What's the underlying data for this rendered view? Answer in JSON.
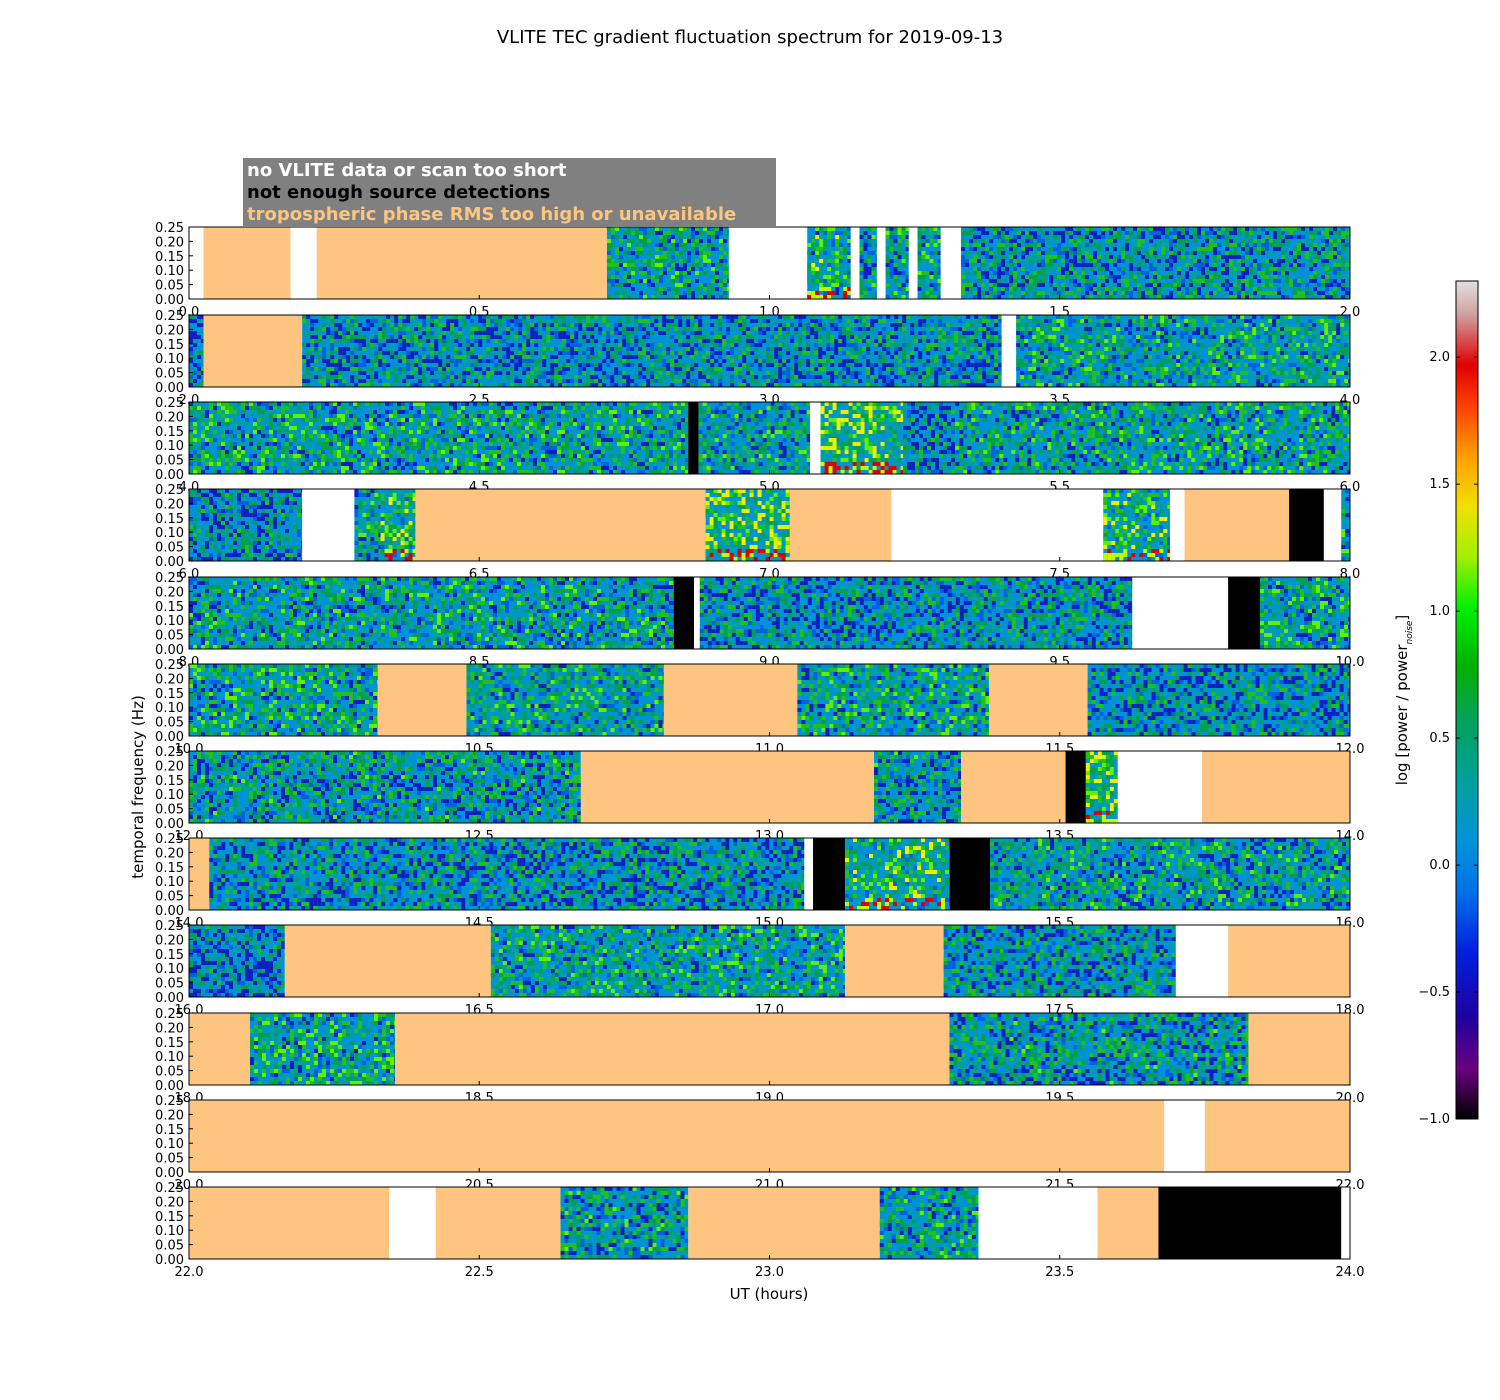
{
  "chart_data": {
    "type": "heatmap",
    "title": "VLITE TEC gradient fluctuation spectrum for 2019-09-13",
    "xlabel": "UT (hours)",
    "ylabel": "temporal frequency (Hz)",
    "ylim": [
      0,
      0.25
    ],
    "y_ticks": [
      "0.00",
      "0.05",
      "0.10",
      "0.15",
      "0.20",
      "0.25"
    ],
    "legend": {
      "placement": "top-left",
      "entries": [
        {
          "label": "no VLITE data or scan too short",
          "color": "#ffffff"
        },
        {
          "label": "not enough source detections",
          "color": "#000000"
        },
        {
          "label": "tropospheric phase RMS too high or unavailable",
          "color": "#fdc57f"
        }
      ],
      "box_color": "#808080"
    },
    "colorbar": {
      "label": "log [power / power",
      "label_sub": "noise",
      "label_end": "]",
      "min": -1.0,
      "max": 2.3,
      "ticks": [
        "−1.0",
        "−0.5",
        "0.0",
        "0.5",
        "1.0",
        "1.5",
        "2.0"
      ],
      "tick_values": [
        -1.0,
        -0.5,
        0.0,
        0.5,
        1.0,
        1.5,
        2.0
      ]
    },
    "category_colors": {
      "nodata": "#ffffff",
      "nodetect": "#000000",
      "trop": "#fdc57f",
      "spectrum_base": "#0092d9"
    },
    "panels": [
      {
        "xlim": [
          0,
          2
        ],
        "x_ticks": [
          "0.0",
          "0.5",
          "1.0",
          "1.5",
          "2.0"
        ],
        "segments": [
          {
            "t0": 0.0,
            "t1": 0.025,
            "type": "nodata"
          },
          {
            "t0": 0.025,
            "t1": 0.175,
            "type": "trop"
          },
          {
            "t0": 0.175,
            "t1": 0.22,
            "type": "nodata"
          },
          {
            "t0": 0.22,
            "t1": 0.72,
            "type": "trop"
          },
          {
            "t0": 0.72,
            "t1": 0.93,
            "type": "spec",
            "level": 0.5
          },
          {
            "t0": 0.93,
            "t1": 1.065,
            "type": "nodata"
          },
          {
            "t0": 1.065,
            "t1": 1.14,
            "type": "spec",
            "level": 0.7
          },
          {
            "t0": 1.14,
            "t1": 1.155,
            "type": "nodata"
          },
          {
            "t0": 1.155,
            "t1": 1.185,
            "type": "spec",
            "level": 0.5
          },
          {
            "t0": 1.185,
            "t1": 1.2,
            "type": "nodata"
          },
          {
            "t0": 1.2,
            "t1": 1.24,
            "type": "spec",
            "level": 0.5
          },
          {
            "t0": 1.24,
            "t1": 1.255,
            "type": "nodata"
          },
          {
            "t0": 1.255,
            "t1": 1.295,
            "type": "spec",
            "level": 0.6
          },
          {
            "t0": 1.295,
            "t1": 1.33,
            "type": "nodata"
          },
          {
            "t0": 1.33,
            "t1": 2.0,
            "type": "spec",
            "level": 0.35
          }
        ]
      },
      {
        "xlim": [
          2,
          4
        ],
        "x_ticks": [
          "2.0",
          "2.5",
          "3.0",
          "3.5",
          "4.0"
        ],
        "segments": [
          {
            "t0": 2.0,
            "t1": 2.025,
            "type": "spec",
            "level": 0.1
          },
          {
            "t0": 2.025,
            "t1": 2.195,
            "type": "trop"
          },
          {
            "t0": 2.195,
            "t1": 3.4,
            "type": "spec",
            "level": 0.3
          },
          {
            "t0": 3.4,
            "t1": 3.425,
            "type": "nodata"
          },
          {
            "t0": 3.425,
            "t1": 4.0,
            "type": "spec",
            "level": 0.55
          }
        ]
      },
      {
        "xlim": [
          4,
          6
        ],
        "x_ticks": [
          "4.0",
          "4.5",
          "5.0",
          "5.5",
          "6.0"
        ],
        "segments": [
          {
            "t0": 4.0,
            "t1": 4.86,
            "type": "spec",
            "level": 0.55
          },
          {
            "t0": 4.86,
            "t1": 4.878,
            "type": "nodetect"
          },
          {
            "t0": 4.878,
            "t1": 5.07,
            "type": "spec",
            "level": 0.5
          },
          {
            "t0": 5.07,
            "t1": 5.088,
            "type": "nodata"
          },
          {
            "t0": 5.088,
            "t1": 5.23,
            "type": "spec",
            "level": 1.0
          },
          {
            "t0": 5.23,
            "t1": 5.32,
            "type": "spec",
            "level": 0.15
          },
          {
            "t0": 5.32,
            "t1": 6.0,
            "type": "spec",
            "level": 0.55
          }
        ]
      },
      {
        "xlim": [
          6,
          8
        ],
        "x_ticks": [
          "6.0",
          "6.5",
          "7.0",
          "7.5",
          "8.0"
        ],
        "segments": [
          {
            "t0": 6.0,
            "t1": 6.195,
            "type": "spec",
            "level": 0.2
          },
          {
            "t0": 6.195,
            "t1": 6.285,
            "type": "nodata"
          },
          {
            "t0": 6.285,
            "t1": 6.33,
            "type": "spec",
            "level": 0.5
          },
          {
            "t0": 6.33,
            "t1": 6.39,
            "type": "spec",
            "level": 0.85
          },
          {
            "t0": 6.39,
            "t1": 6.89,
            "type": "trop"
          },
          {
            "t0": 6.89,
            "t1": 7.035,
            "type": "spec",
            "level": 1.0
          },
          {
            "t0": 7.035,
            "t1": 7.21,
            "type": "trop"
          },
          {
            "t0": 7.21,
            "t1": 7.575,
            "type": "nodata"
          },
          {
            "t0": 7.575,
            "t1": 7.69,
            "type": "spec",
            "level": 0.75
          },
          {
            "t0": 7.69,
            "t1": 7.715,
            "type": "nodata"
          },
          {
            "t0": 7.715,
            "t1": 7.895,
            "type": "trop"
          },
          {
            "t0": 7.895,
            "t1": 7.955,
            "type": "nodetect"
          },
          {
            "t0": 7.955,
            "t1": 7.985,
            "type": "nodata"
          },
          {
            "t0": 7.985,
            "t1": 8.0,
            "type": "spec",
            "level": 0.5
          }
        ]
      },
      {
        "xlim": [
          8,
          10
        ],
        "x_ticks": [
          "8.0",
          "8.5",
          "9.0",
          "9.5",
          "10.0"
        ],
        "segments": [
          {
            "t0": 8.0,
            "t1": 8.835,
            "type": "spec",
            "level": 0.5
          },
          {
            "t0": 8.835,
            "t1": 8.87,
            "type": "nodetect"
          },
          {
            "t0": 8.87,
            "t1": 8.88,
            "type": "nodata"
          },
          {
            "t0": 8.88,
            "t1": 9.625,
            "type": "spec",
            "level": 0.3
          },
          {
            "t0": 9.625,
            "t1": 9.79,
            "type": "nodata"
          },
          {
            "t0": 9.79,
            "t1": 9.845,
            "type": "nodetect"
          },
          {
            "t0": 9.845,
            "t1": 10.0,
            "type": "spec",
            "level": 0.55
          }
        ]
      },
      {
        "xlim": [
          10,
          12
        ],
        "x_ticks": [
          "10.0",
          "10.5",
          "11.0",
          "11.5",
          "12.0"
        ],
        "segments": [
          {
            "t0": 10.0,
            "t1": 10.325,
            "type": "spec",
            "level": 0.6
          },
          {
            "t0": 10.325,
            "t1": 10.478,
            "type": "trop"
          },
          {
            "t0": 10.478,
            "t1": 10.818,
            "type": "spec",
            "level": 0.55
          },
          {
            "t0": 10.818,
            "t1": 11.048,
            "type": "trop"
          },
          {
            "t0": 11.048,
            "t1": 11.378,
            "type": "spec",
            "level": 0.55
          },
          {
            "t0": 11.378,
            "t1": 11.548,
            "type": "trop"
          },
          {
            "t0": 11.548,
            "t1": 12.0,
            "type": "spec",
            "level": 0.3
          }
        ]
      },
      {
        "xlim": [
          12,
          14
        ],
        "x_ticks": [
          "12.0",
          "12.5",
          "13.0",
          "13.5",
          "14.0"
        ],
        "segments": [
          {
            "t0": 12.0,
            "t1": 12.675,
            "type": "spec",
            "level": 0.4
          },
          {
            "t0": 12.675,
            "t1": 13.18,
            "type": "trop"
          },
          {
            "t0": 13.18,
            "t1": 13.33,
            "type": "spec",
            "level": 0.4
          },
          {
            "t0": 13.33,
            "t1": 13.51,
            "type": "trop"
          },
          {
            "t0": 13.51,
            "t1": 13.545,
            "type": "nodetect"
          },
          {
            "t0": 13.545,
            "t1": 13.6,
            "type": "spec",
            "level": 1.0
          },
          {
            "t0": 13.6,
            "t1": 13.745,
            "type": "nodata"
          },
          {
            "t0": 13.745,
            "t1": 14.0,
            "type": "trop"
          }
        ]
      },
      {
        "xlim": [
          14,
          16
        ],
        "x_ticks": [
          "14.0",
          "14.5",
          "15.0",
          "15.5",
          "16.0"
        ],
        "segments": [
          {
            "t0": 14.0,
            "t1": 14.035,
            "type": "trop"
          },
          {
            "t0": 14.035,
            "t1": 15.06,
            "type": "spec",
            "level": 0.3
          },
          {
            "t0": 15.06,
            "t1": 15.075,
            "type": "nodata"
          },
          {
            "t0": 15.075,
            "t1": 15.13,
            "type": "nodetect"
          },
          {
            "t0": 15.13,
            "t1": 15.31,
            "type": "spec",
            "level": 0.8
          },
          {
            "t0": 15.31,
            "t1": 15.38,
            "type": "nodetect"
          },
          {
            "t0": 15.38,
            "t1": 16.0,
            "type": "spec",
            "level": 0.45
          }
        ]
      },
      {
        "xlim": [
          16,
          18
        ],
        "x_ticks": [
          "16.0",
          "16.5",
          "17.0",
          "17.5",
          "18.0"
        ],
        "segments": [
          {
            "t0": 16.0,
            "t1": 16.165,
            "type": "spec",
            "level": 0.1
          },
          {
            "t0": 16.165,
            "t1": 16.52,
            "type": "trop"
          },
          {
            "t0": 16.52,
            "t1": 17.13,
            "type": "spec",
            "level": 0.55
          },
          {
            "t0": 17.13,
            "t1": 17.3,
            "type": "trop"
          },
          {
            "t0": 17.3,
            "t1": 17.7,
            "type": "spec",
            "level": 0.35
          },
          {
            "t0": 17.7,
            "t1": 17.79,
            "type": "nodata"
          },
          {
            "t0": 17.79,
            "t1": 18.0,
            "type": "trop"
          }
        ]
      },
      {
        "xlim": [
          18,
          20
        ],
        "x_ticks": [
          "18.0",
          "18.5",
          "19.0",
          "19.5",
          "20.0"
        ],
        "segments": [
          {
            "t0": 18.0,
            "t1": 18.105,
            "type": "trop"
          },
          {
            "t0": 18.105,
            "t1": 18.355,
            "type": "spec",
            "level": 0.6
          },
          {
            "t0": 18.355,
            "t1": 19.31,
            "type": "trop"
          },
          {
            "t0": 19.31,
            "t1": 19.825,
            "type": "spec",
            "level": 0.4
          },
          {
            "t0": 19.825,
            "t1": 20.0,
            "type": "trop"
          }
        ]
      },
      {
        "xlim": [
          20,
          22
        ],
        "x_ticks": [
          "20.0",
          "20.5",
          "21.0",
          "21.5",
          "22.0"
        ],
        "segments": [
          {
            "t0": 20.0,
            "t1": 21.68,
            "type": "trop"
          },
          {
            "t0": 21.68,
            "t1": 21.75,
            "type": "nodata"
          },
          {
            "t0": 21.75,
            "t1": 22.0,
            "type": "trop"
          }
        ]
      },
      {
        "xlim": [
          22,
          24
        ],
        "x_ticks": [
          "22.0",
          "22.5",
          "23.0",
          "23.5",
          "24.0"
        ],
        "segments": [
          {
            "t0": 22.0,
            "t1": 22.345,
            "type": "trop"
          },
          {
            "t0": 22.345,
            "t1": 22.425,
            "type": "nodata"
          },
          {
            "t0": 22.425,
            "t1": 22.64,
            "type": "trop"
          },
          {
            "t0": 22.64,
            "t1": 22.86,
            "type": "spec",
            "level": 0.45
          },
          {
            "t0": 22.86,
            "t1": 23.19,
            "type": "trop"
          },
          {
            "t0": 23.19,
            "t1": 23.36,
            "type": "spec",
            "level": 0.5
          },
          {
            "t0": 23.36,
            "t1": 23.565,
            "type": "nodata"
          },
          {
            "t0": 23.565,
            "t1": 23.67,
            "type": "trop"
          },
          {
            "t0": 23.67,
            "t1": 23.985,
            "type": "nodetect"
          },
          {
            "t0": 23.985,
            "t1": 24.0,
            "type": "nodata"
          }
        ]
      }
    ]
  }
}
